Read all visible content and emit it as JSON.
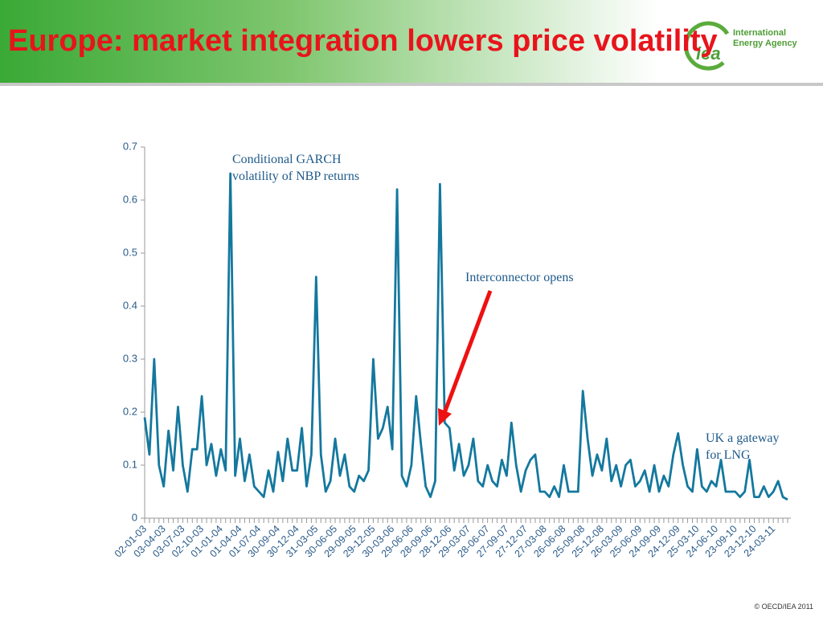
{
  "slide": {
    "title": "Europe: market integration lowers price volatility",
    "logo": {
      "mark": "iea",
      "lines": [
        "International",
        "Energy Agency"
      ]
    },
    "footer": "© OECD/IEA 2011"
  },
  "chart_data": {
    "type": "line",
    "color": "#14789e",
    "ylim": [
      0,
      0.7
    ],
    "yticks": [
      0,
      0.1,
      0.2,
      0.3,
      0.4,
      0.5,
      0.6,
      0.7
    ],
    "annotations": [
      {
        "lines": [
          "Conditional GARCH",
          "volatility of NBP returns"
        ]
      },
      {
        "lines": [
          "Interconnector opens"
        ]
      },
      {
        "lines": [
          "UK a gateway",
          "for LNG"
        ]
      }
    ],
    "categories": [
      "02-01-03",
      null,
      null,
      null,
      "03-04-03",
      null,
      null,
      null,
      "03-07-03",
      null,
      null,
      null,
      "02-10-03",
      null,
      null,
      null,
      "01-01-04",
      null,
      null,
      null,
      "01-04-04",
      null,
      null,
      null,
      "01-07-04",
      null,
      null,
      null,
      "30-09-04",
      null,
      null,
      null,
      "30-12-04",
      null,
      null,
      null,
      "31-03-05",
      null,
      null,
      null,
      "30-06-05",
      null,
      null,
      null,
      "29-09-05",
      null,
      null,
      null,
      "29-12-05",
      null,
      null,
      null,
      "30-03-06",
      null,
      null,
      null,
      "29-06-06",
      null,
      null,
      null,
      "28-09-06",
      null,
      null,
      null,
      "28-12-06",
      null,
      null,
      null,
      "29-03-07",
      null,
      null,
      null,
      "28-06-07",
      null,
      null,
      null,
      "27-09-07",
      null,
      null,
      null,
      "27-12-07",
      null,
      null,
      null,
      "27-03-08",
      null,
      null,
      null,
      "26-06-08",
      null,
      null,
      null,
      "25-09-08",
      null,
      null,
      null,
      "25-12-08",
      null,
      null,
      null,
      "26-03-09",
      null,
      null,
      null,
      "25-06-09",
      null,
      null,
      null,
      "24-09-09",
      null,
      null,
      null,
      "24-12-09",
      null,
      null,
      null,
      "25-03-10",
      null,
      null,
      null,
      "24-06-10",
      null,
      null,
      null,
      "23-09-10",
      null,
      null,
      null,
      "23-12-10",
      null,
      null,
      null,
      "24-03-11",
      null,
      null,
      null
    ],
    "values": [
      0.19,
      0.12,
      0.3,
      0.1,
      0.06,
      0.165,
      0.09,
      0.21,
      0.1,
      0.05,
      0.13,
      0.13,
      0.23,
      0.1,
      0.14,
      0.08,
      0.13,
      0.09,
      0.65,
      0.08,
      0.15,
      0.07,
      0.12,
      0.06,
      0.05,
      0.04,
      0.09,
      0.05,
      0.125,
      0.07,
      0.15,
      0.09,
      0.09,
      0.17,
      0.06,
      0.12,
      0.455,
      0.12,
      0.05,
      0.07,
      0.15,
      0.08,
      0.12,
      0.06,
      0.05,
      0.08,
      0.07,
      0.09,
      0.3,
      0.15,
      0.17,
      0.21,
      0.13,
      0.62,
      0.08,
      0.06,
      0.1,
      0.23,
      0.14,
      0.06,
      0.04,
      0.07,
      0.63,
      0.18,
      0.17,
      0.09,
      0.14,
      0.08,
      0.1,
      0.15,
      0.07,
      0.06,
      0.1,
      0.07,
      0.06,
      0.11,
      0.08,
      0.18,
      0.1,
      0.05,
      0.09,
      0.11,
      0.12,
      0.05,
      0.05,
      0.04,
      0.06,
      0.04,
      0.1,
      0.05,
      0.05,
      0.05,
      0.24,
      0.15,
      0.08,
      0.12,
      0.09,
      0.15,
      0.07,
      0.1,
      0.06,
      0.1,
      0.11,
      0.06,
      0.07,
      0.09,
      0.05,
      0.1,
      0.05,
      0.08,
      0.06,
      0.12,
      0.16,
      0.1,
      0.06,
      0.05,
      0.13,
      0.06,
      0.05,
      0.07,
      0.06,
      0.11,
      0.05,
      0.05,
      0.05,
      0.04,
      0.05,
      0.11,
      0.04,
      0.04,
      0.06,
      0.04,
      0.05,
      0.07,
      0.04,
      0.035
    ]
  }
}
